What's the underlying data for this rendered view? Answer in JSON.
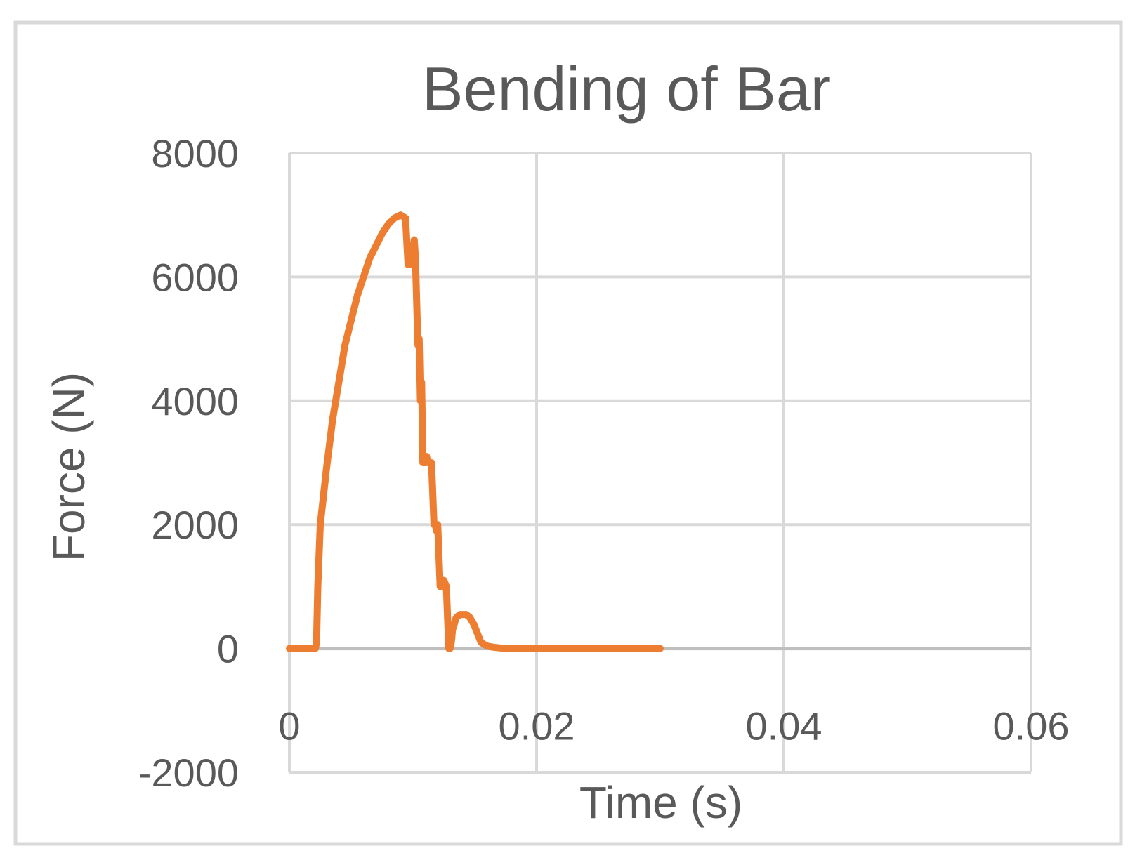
{
  "chart_data": {
    "type": "scatter",
    "title": "Bending of Bar",
    "xlabel": "Time (s)",
    "ylabel": "Force (N)",
    "xlim": [
      0,
      0.06
    ],
    "ylim": [
      -2000,
      8000
    ],
    "x_ticks": [
      0,
      0.02,
      0.04,
      0.06
    ],
    "x_tick_labels": [
      "0",
      "0.02",
      "0.04",
      "0.06"
    ],
    "y_ticks": [
      -2000,
      0,
      2000,
      4000,
      6000,
      8000
    ],
    "y_tick_labels": [
      "-2000",
      "0",
      "2000",
      "4000",
      "6000",
      "8000"
    ],
    "grid": true,
    "legend": "none",
    "line_color": "#ED7D31",
    "series": [
      {
        "x": [
          0,
          0.002,
          0.0021,
          0.0022,
          0.0023,
          0.0025,
          0.003,
          0.0035,
          0.004,
          0.0045,
          0.005,
          0.0055,
          0.006,
          0.0065,
          0.007,
          0.0075,
          0.008,
          0.0085,
          0.009,
          0.0094,
          0.0096,
          0.0097,
          0.0099,
          0.0101,
          0.0102,
          0.0104,
          0.0105,
          0.0106,
          0.0107,
          0.0108,
          0.011,
          0.0111,
          0.0112,
          0.0115,
          0.0117,
          0.0118,
          0.0119,
          0.012,
          0.0122,
          0.0123,
          0.0125,
          0.0127,
          0.0129,
          0.013,
          0.0131,
          0.0132,
          0.0135,
          0.0138,
          0.014,
          0.0143,
          0.0146,
          0.0149,
          0.0152,
          0.0155,
          0.0158,
          0.016,
          0.0165,
          0.017,
          0.0175,
          0.018,
          0.019,
          0.02,
          0.022,
          0.025,
          0.028,
          0.03
        ],
        "y": [
          0,
          0,
          0,
          100,
          1000,
          2000,
          2900,
          3700,
          4300,
          4900,
          5300,
          5700,
          6000,
          6300,
          6500,
          6700,
          6850,
          6950,
          7000,
          6950,
          6200,
          6400,
          6200,
          6600,
          6300,
          4900,
          5000,
          4000,
          4300,
          3000,
          3000,
          3100,
          3000,
          3000,
          2000,
          2000,
          1900,
          2000,
          1000,
          1000,
          1100,
          1000,
          0,
          0,
          100,
          300,
          500,
          550,
          550,
          550,
          500,
          400,
          250,
          100,
          60,
          40,
          20,
          10,
          5,
          0,
          0,
          0,
          0,
          0,
          0,
          0
        ]
      }
    ]
  }
}
